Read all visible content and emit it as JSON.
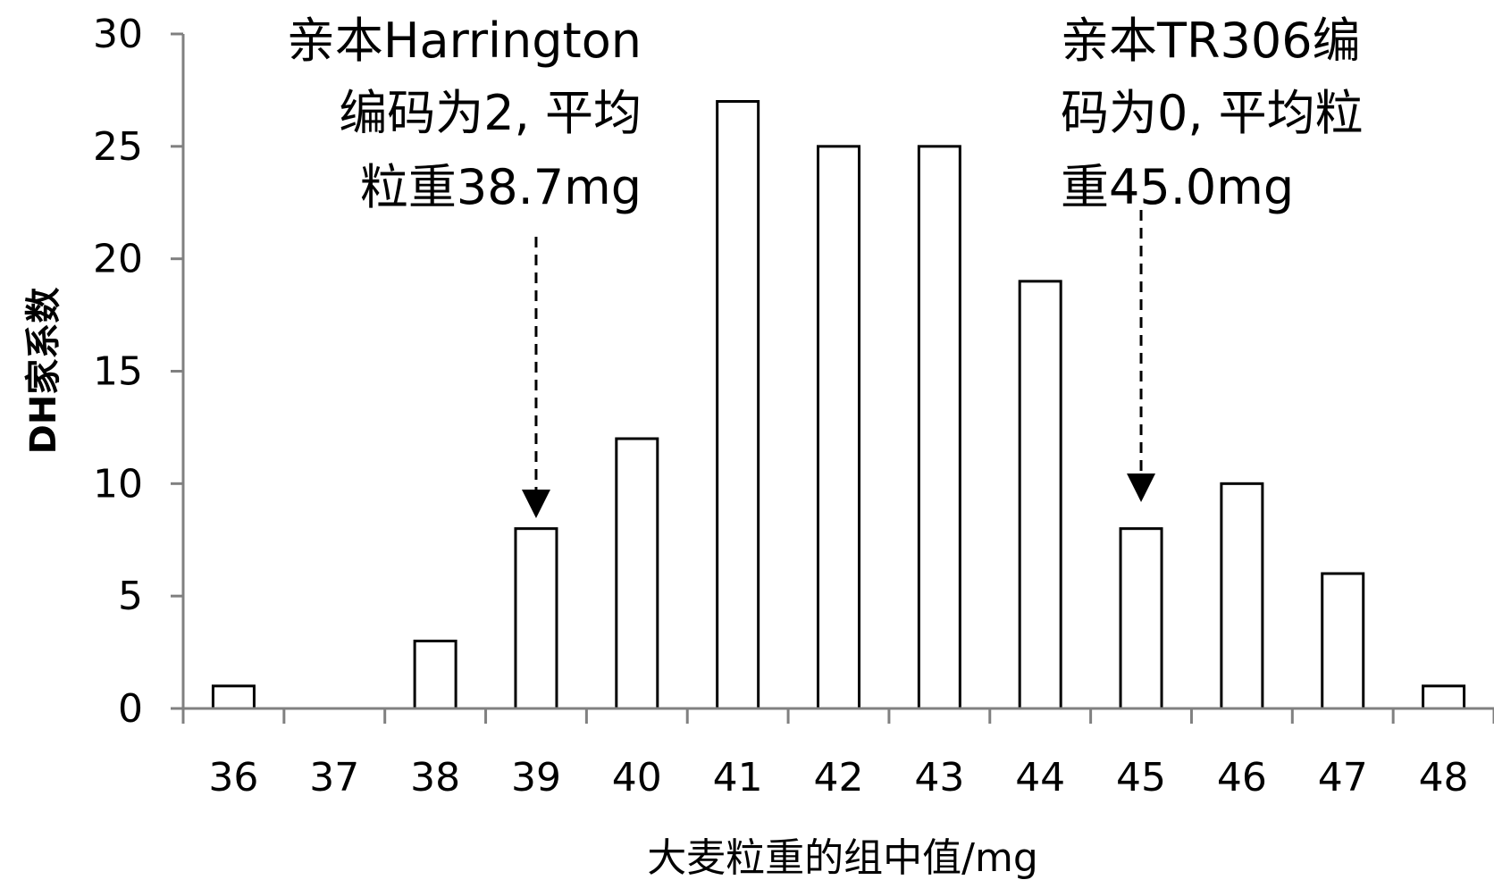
{
  "chart_data": {
    "type": "bar",
    "categories": [
      "36",
      "37",
      "38",
      "39",
      "40",
      "41",
      "42",
      "43",
      "44",
      "45",
      "46",
      "47",
      "48"
    ],
    "values": [
      1,
      0,
      3,
      8,
      12,
      27,
      25,
      25,
      19,
      8,
      10,
      6,
      1
    ],
    "xlabel": "大麦粒重的组中值/mg",
    "ylabel": "DH家系数",
    "ylim": [
      0,
      30
    ],
    "yticks": [
      0,
      5,
      10,
      15,
      20,
      25,
      30
    ],
    "grid": false,
    "legend": "none",
    "colors": {
      "bar_fill": "#ffffff",
      "bar_stroke": "#000000",
      "axis": "#808080"
    },
    "annotations": [
      {
        "lines": [
          "亲本Harrington",
          "编码为2, 平均",
          "粒重38.7mg"
        ],
        "align": "right",
        "target_category": "39"
      },
      {
        "lines": [
          "亲本TR306编",
          "码为0, 平均粒",
          "重45.0mg"
        ],
        "align": "left",
        "target_category": "45"
      }
    ]
  }
}
